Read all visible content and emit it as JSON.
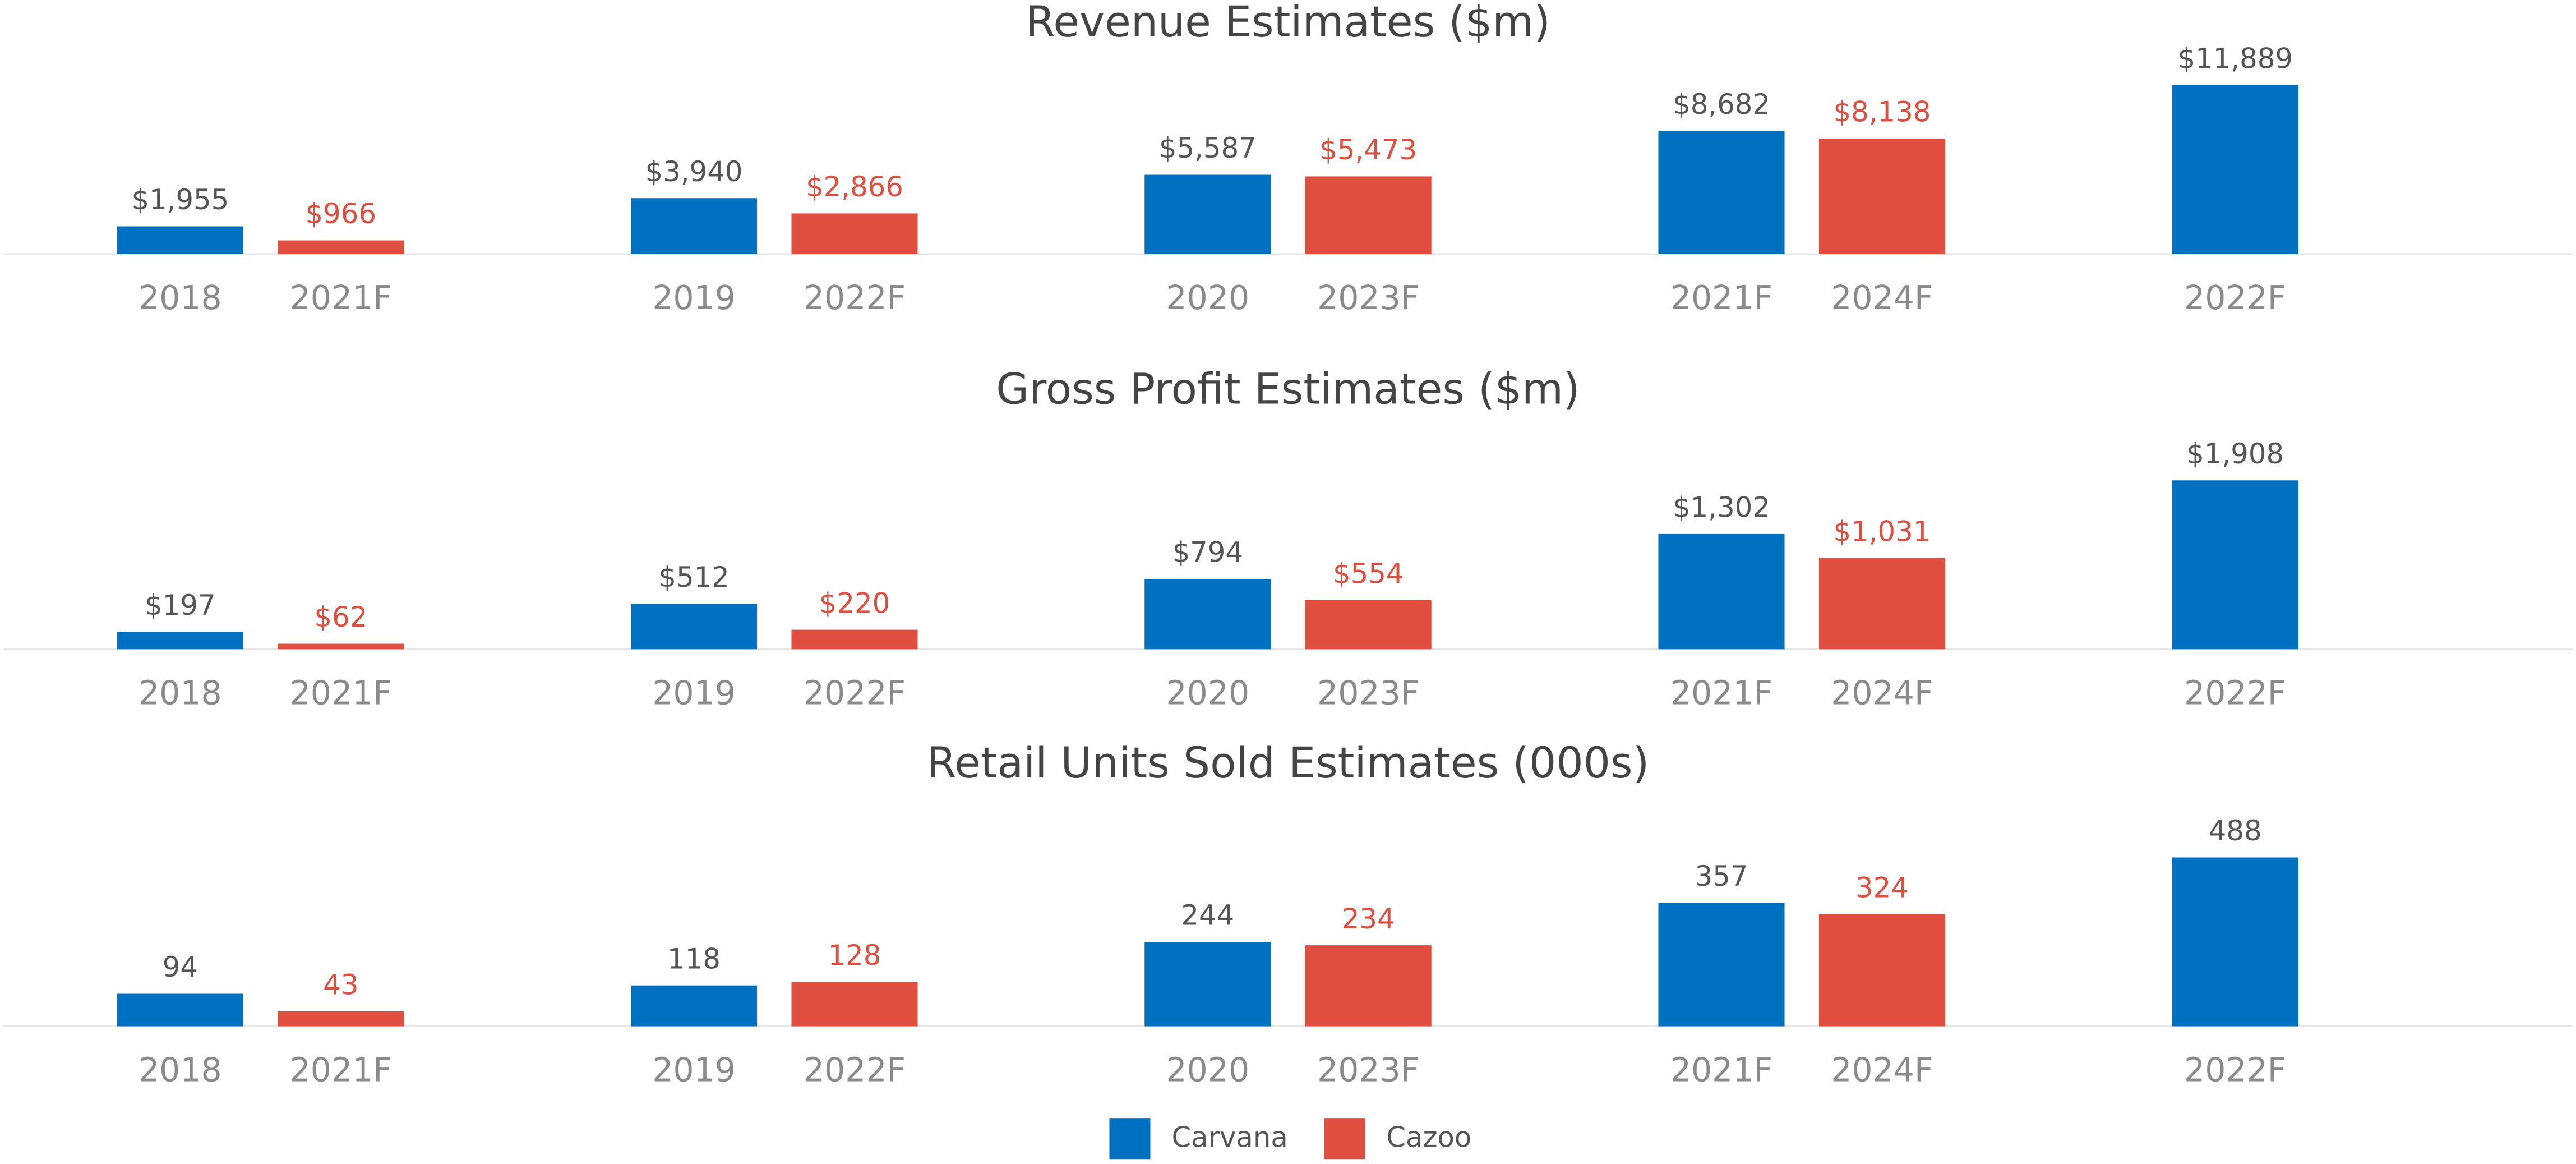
{
  "legend": [
    {
      "name": "Carvana",
      "color": "#0070c0"
    },
    {
      "name": "Cazoo",
      "color": "#e04e3f"
    }
  ],
  "chart_data": [
    {
      "type": "bar",
      "title": "Revenue Estimates ($m)",
      "series": [
        {
          "categories": [
            "2018",
            "2019",
            "2020",
            "2021F",
            "2022F"
          ],
          "values": [
            1955,
            3940,
            5587,
            8682,
            11889
          ],
          "value_labels": [
            "$1,955",
            "$3,940",
            "$5,587",
            "$8,682",
            "$11,889"
          ]
        },
        {
          "categories": [
            "2021F",
            "2022F",
            "2023F",
            "2024F"
          ],
          "values": [
            966,
            2866,
            5473,
            8138
          ],
          "value_labels": [
            "$966",
            "$2,866",
            "$5,473",
            "$8,138"
          ]
        }
      ]
    },
    {
      "type": "bar",
      "title": "Gross Profit Estimates ($m)",
      "series": [
        {
          "categories": [
            "2018",
            "2019",
            "2020",
            "2021F",
            "2022F"
          ],
          "values": [
            197,
            512,
            794,
            1302,
            1908
          ],
          "value_labels": [
            "$197",
            "$512",
            "$794",
            "$1,302",
            "$1,908"
          ]
        },
        {
          "categories": [
            "2021F",
            "2022F",
            "2023F",
            "2024F"
          ],
          "values": [
            62,
            220,
            554,
            1031
          ],
          "value_labels": [
            "$62",
            "$220",
            "$554",
            "$1,031"
          ]
        }
      ]
    },
    {
      "type": "bar",
      "title": "Retail Units Sold Estimates (000s)",
      "series": [
        {
          "categories": [
            "2018",
            "2019",
            "2020",
            "2021F",
            "2022F"
          ],
          "values": [
            94,
            118,
            244,
            357,
            488
          ]
        },
        {
          "categories": [
            "2021F",
            "2022F",
            "2023F",
            "2024F"
          ],
          "values": [
            43,
            128,
            234,
            324
          ]
        }
      ]
    }
  ]
}
